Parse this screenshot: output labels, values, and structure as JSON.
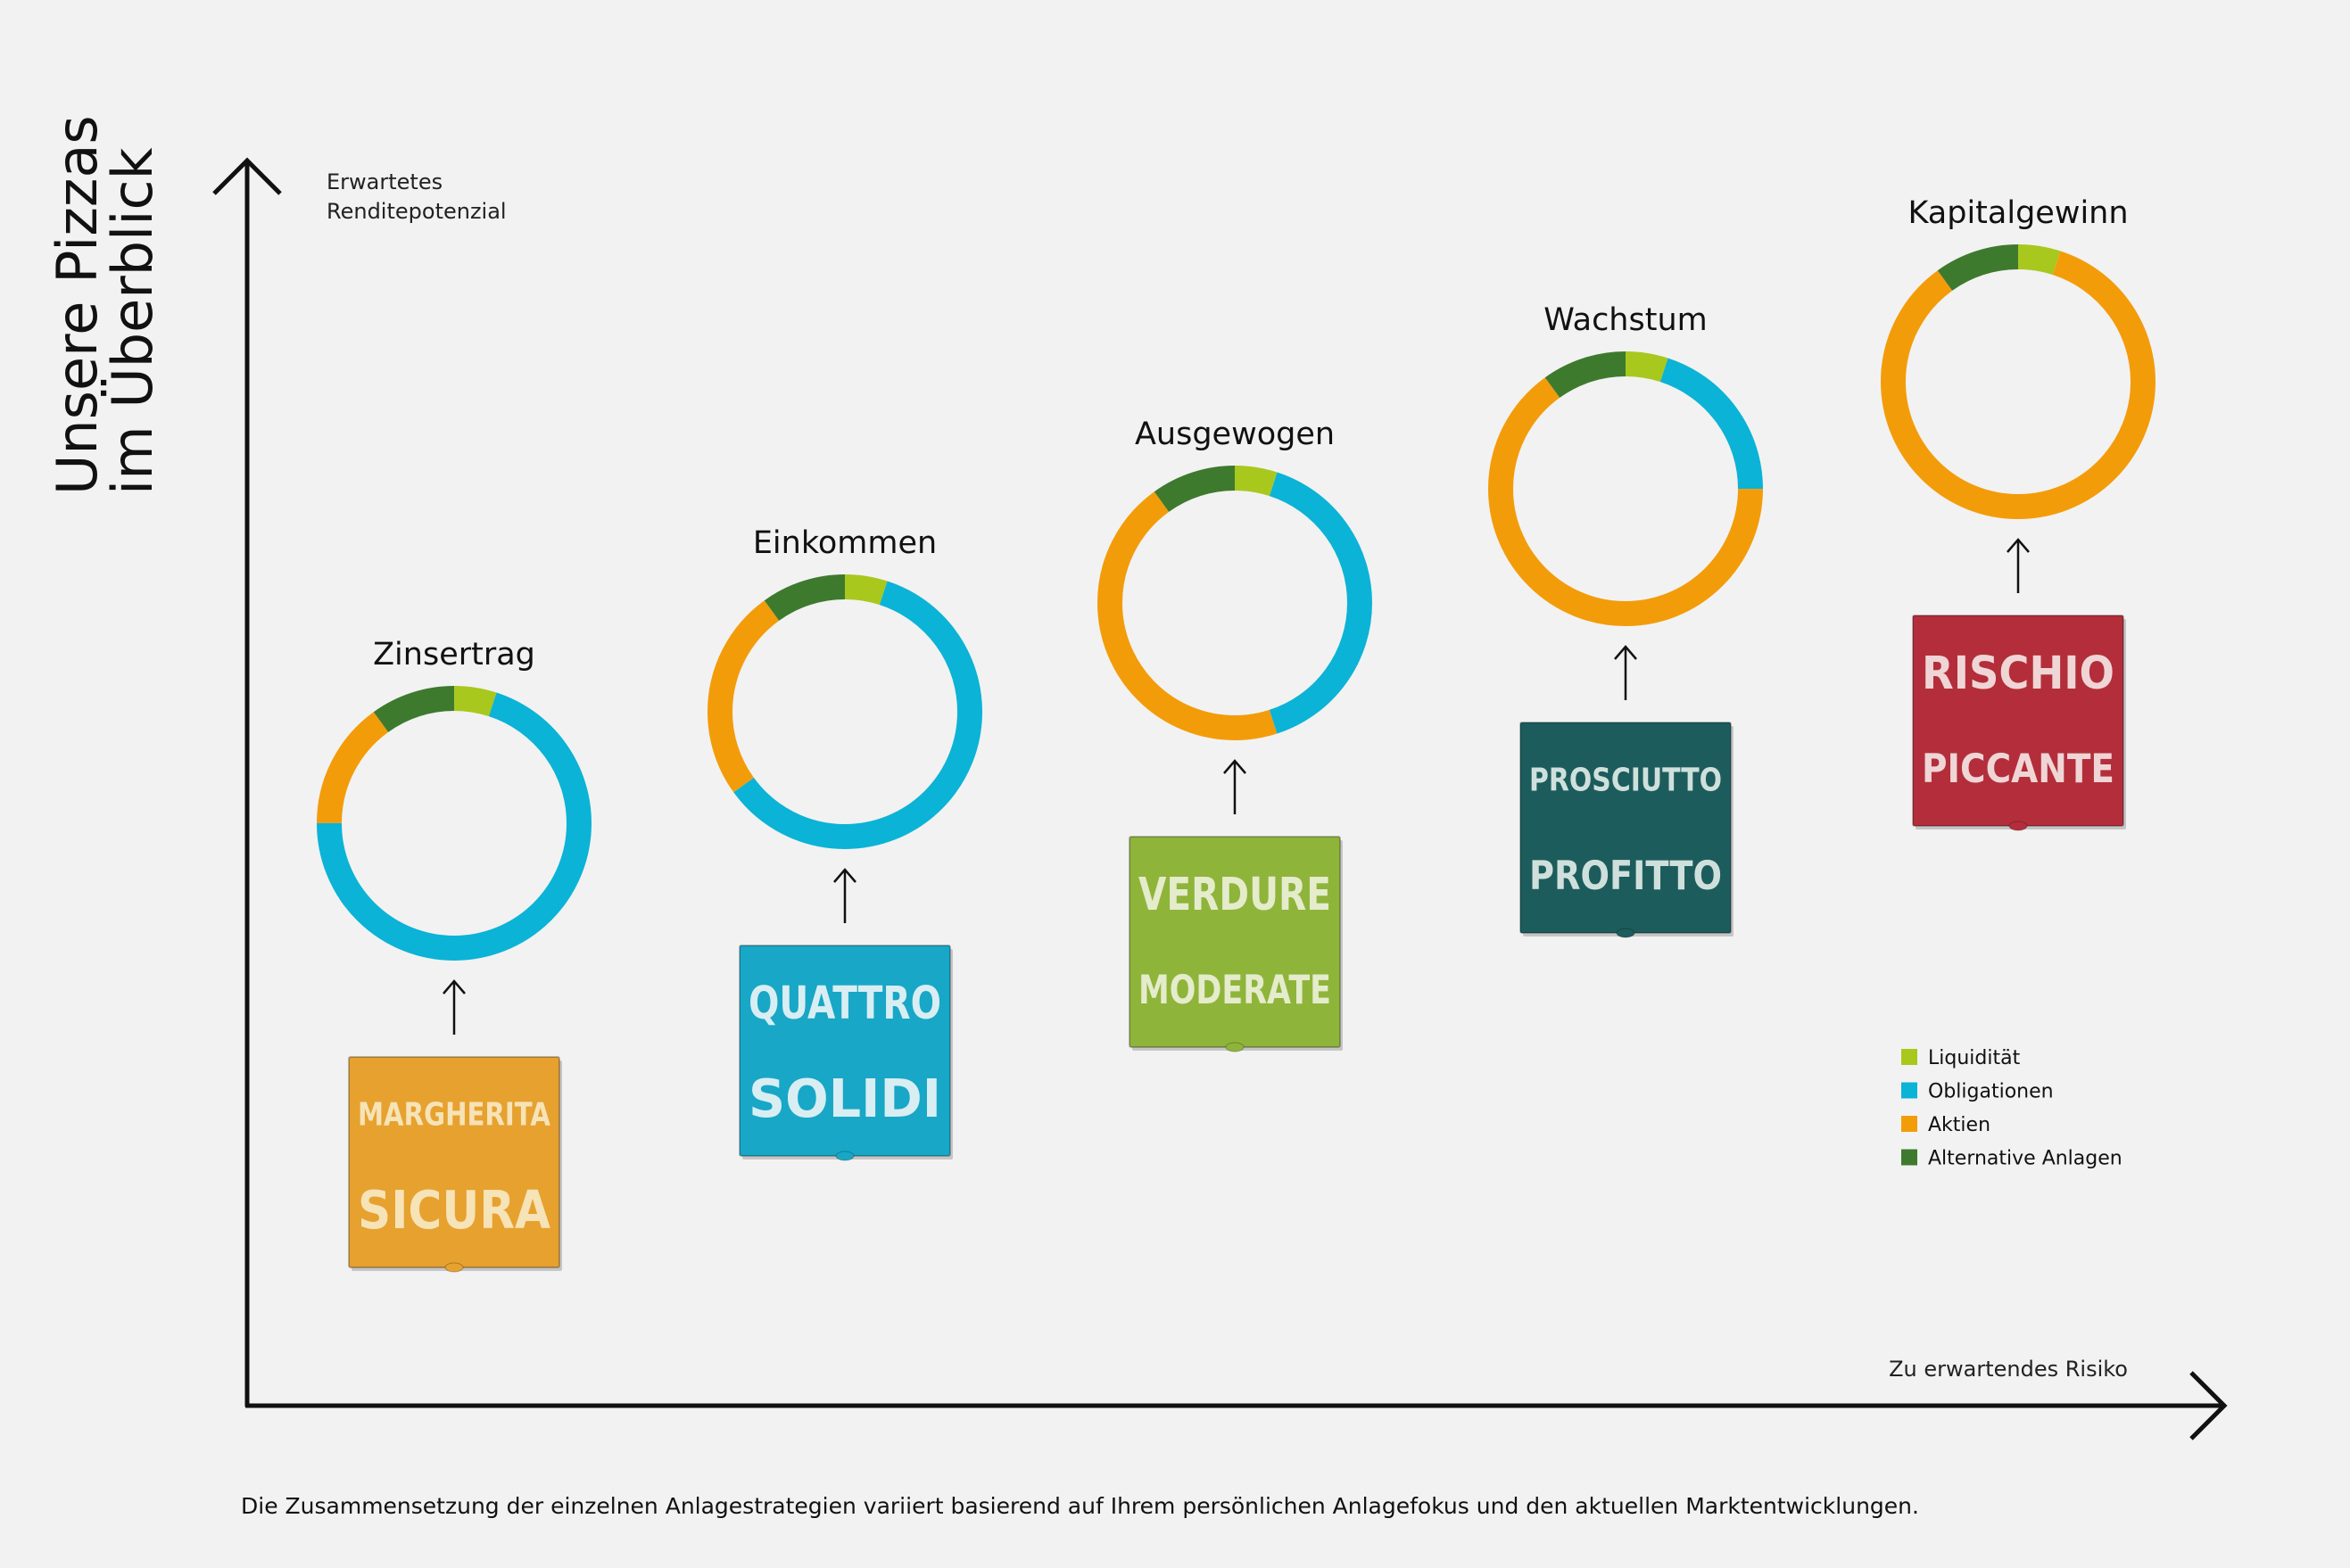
{
  "page_title": {
    "line1": "Unsere Pizzas",
    "line2": "im Überblick"
  },
  "footnote": "Die Zusammensetzung der einzelnen Anlagestrategien variiert basierend auf Ihrem persönlichen Anlagefokus und den aktuellen Marktentwicklungen.",
  "chart_data": {
    "type": "donut",
    "y_axis_label": [
      "Erwartetes",
      "Renditepotenzial"
    ],
    "x_axis_label": "Zu erwartendes Risiko",
    "legend_position": "bottom-right",
    "legend": [
      {
        "name": "Liquidität",
        "color": "#a8c81e"
      },
      {
        "name": "Obligationen",
        "color": "#0bb3d6"
      },
      {
        "name": "Aktien",
        "color": "#f39c0a"
      },
      {
        "name": "Alternative Anlagen",
        "color": "#3e7a2e"
      }
    ],
    "strategies": [
      {
        "title": "Zinsertrag",
        "risk_rank": 1,
        "slices": [
          {
            "name": "Liquidität",
            "value": 5
          },
          {
            "name": "Obligationen",
            "value": 70
          },
          {
            "name": "Aktien",
            "value": 15
          },
          {
            "name": "Alternative Anlagen",
            "value": 10
          }
        ],
        "pizza": {
          "lines": [
            "MARGHERITA",
            "SICURA"
          ],
          "color": "#e7a12f",
          "text_color": "#f6e3b7"
        }
      },
      {
        "title": "Einkommen",
        "risk_rank": 2,
        "slices": [
          {
            "name": "Liquidität",
            "value": 5
          },
          {
            "name": "Obligationen",
            "value": 60
          },
          {
            "name": "Aktien",
            "value": 25
          },
          {
            "name": "Alternative Anlagen",
            "value": 10
          }
        ],
        "pizza": {
          "lines": [
            "QUATTRO",
            "SOLIDI"
          ],
          "color": "#18a7c6",
          "text_color": "#d8eef3"
        }
      },
      {
        "title": "Ausgewogen",
        "risk_rank": 3,
        "slices": [
          {
            "name": "Liquidität",
            "value": 5
          },
          {
            "name": "Obligationen",
            "value": 40
          },
          {
            "name": "Aktien",
            "value": 45
          },
          {
            "name": "Alternative Anlagen",
            "value": 10
          }
        ],
        "pizza": {
          "lines": [
            "VERDURE",
            "MODERATE"
          ],
          "color": "#8fb43a",
          "text_color": "#e4eccc"
        }
      },
      {
        "title": "Wachstum",
        "risk_rank": 4,
        "slices": [
          {
            "name": "Liquidität",
            "value": 5
          },
          {
            "name": "Obligationen",
            "value": 20
          },
          {
            "name": "Aktien",
            "value": 65
          },
          {
            "name": "Alternative Anlagen",
            "value": 10
          }
        ],
        "pizza": {
          "lines": [
            "PROSCIUTTO",
            "PROFITTO"
          ],
          "color": "#1d5c5c",
          "text_color": "#cfe0dc"
        }
      },
      {
        "title": "Kapitalgewinn",
        "risk_rank": 5,
        "slices": [
          {
            "name": "Liquidität",
            "value": 5
          },
          {
            "name": "Obligationen",
            "value": 0
          },
          {
            "name": "Aktien",
            "value": 85
          },
          {
            "name": "Alternative Anlagen",
            "value": 10
          }
        ],
        "pizza": {
          "lines": [
            "RISCHIO",
            "PICCANTE"
          ],
          "color": "#b32e3a",
          "text_color": "#f0d5d6"
        }
      }
    ]
  }
}
